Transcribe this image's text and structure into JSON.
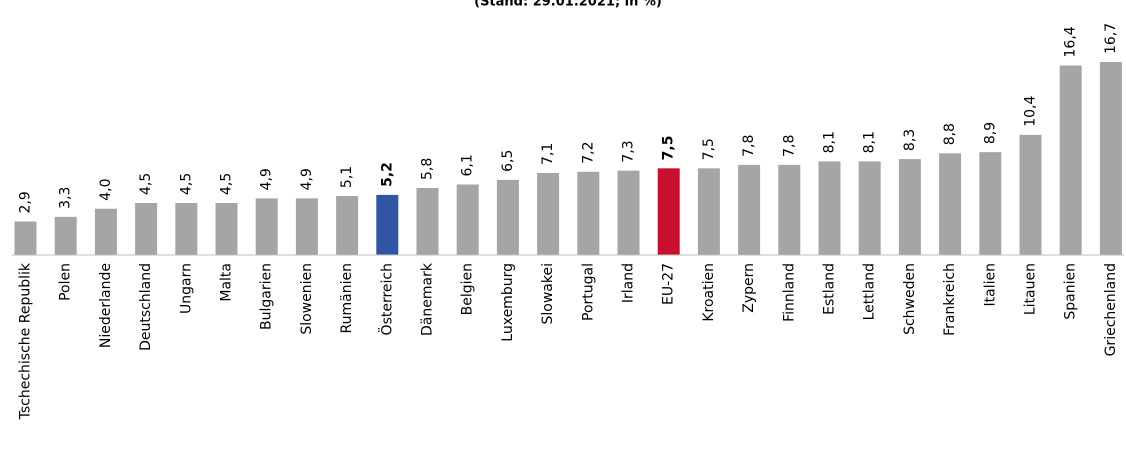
{
  "chart_data": {
    "type": "bar",
    "subtitle": "(Stand: 29.01.2021; in %)",
    "categories": [
      "Tschechische Republik",
      "Polen",
      "Niederlande",
      "Deutschland",
      "Ungarn",
      "Malta",
      "Bulgarien",
      "Slowenien",
      "Rumänien",
      "Österreich",
      "Dänemark",
      "Belgien",
      "Luxemburg",
      "Slowakei",
      "Portugal",
      "Irland",
      "EU-27",
      "Kroatien",
      "Zypern",
      "Finnland",
      "Estland",
      "Lettland",
      "Schweden",
      "Frankreich",
      "Italien",
      "Litauen",
      "Spanien",
      "Griechenland"
    ],
    "values": [
      2.9,
      3.3,
      4.0,
      4.5,
      4.5,
      4.5,
      4.9,
      4.9,
      5.1,
      5.2,
      5.8,
      6.1,
      6.5,
      7.1,
      7.2,
      7.3,
      7.5,
      7.5,
      7.8,
      7.8,
      8.1,
      8.1,
      8.3,
      8.8,
      8.9,
      10.4,
      16.4,
      16.7
    ],
    "value_labels": [
      "2,9",
      "3,3",
      "4,0",
      "4,5",
      "4,5",
      "4,5",
      "4,9",
      "4,9",
      "5,1",
      "5,2",
      "5,8",
      "6,1",
      "6,5",
      "7,1",
      "7,2",
      "7,3",
      "7,5",
      "7,5",
      "7,8",
      "7,8",
      "8,1",
      "8,1",
      "8,3",
      "8,8",
      "8,9",
      "10,4",
      "16,4",
      "16,7"
    ],
    "color": "#a5a5a5",
    "colors": [
      "#a5a5a5",
      "#a5a5a5",
      "#a5a5a5",
      "#a5a5a5",
      "#a5a5a5",
      "#a5a5a5",
      "#a5a5a5",
      "#a5a5a5",
      "#a5a5a5",
      "#2f55a4",
      "#a5a5a5",
      "#a5a5a5",
      "#a5a5a5",
      "#a5a5a5",
      "#a5a5a5",
      "#a5a5a5",
      "#c8102e",
      "#a5a5a5",
      "#a5a5a5",
      "#a5a5a5",
      "#a5a5a5",
      "#a5a5a5",
      "#a5a5a5",
      "#a5a5a5",
      "#a5a5a5",
      "#a5a5a5",
      "#a5a5a5",
      "#a5a5a5"
    ]
  }
}
